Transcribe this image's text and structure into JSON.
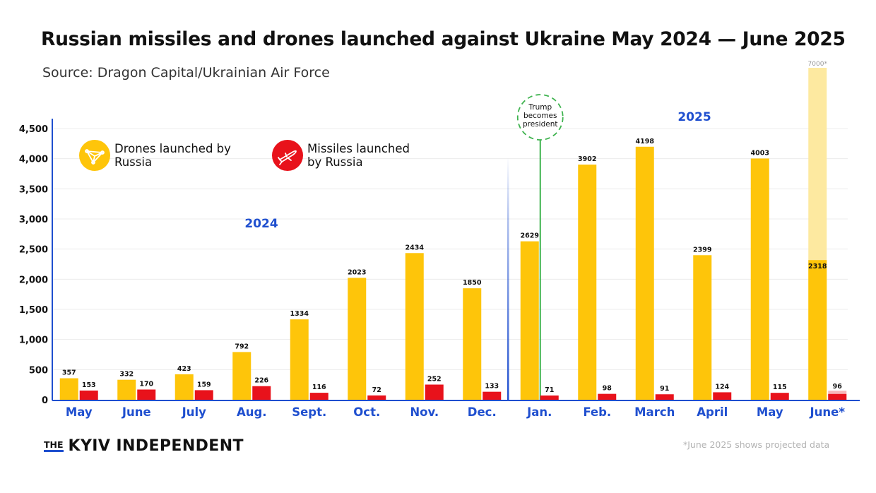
{
  "colors": {
    "drones": "#fec50a",
    "drones_projected": "#fde9a0",
    "missiles": "#e8121b",
    "missiles_projected": "#f7b7b9",
    "accent_blue": "#1f4fcf",
    "event_green": "#3fb34f",
    "grid": "#ececec",
    "axis": "#1f4fcf"
  },
  "legend": {
    "drones": {
      "label": "Drones launched by Russia",
      "icon": "drone-icon"
    },
    "missiles": {
      "label": "Missiles launched by Russia",
      "icon": "missile-icon"
    }
  },
  "annotations": {
    "year_2024": "2024",
    "year_2025": "2025",
    "event_label_lines": [
      "Trump",
      "becomes",
      "president"
    ]
  },
  "brand": {
    "prefix": "THE",
    "name": "KYIV INDEPENDENT"
  },
  "footnote": "*June 2025 shows projected data",
  "chart_data": {
    "type": "bar",
    "title": "Russian missiles and drones launched against Ukraine May 2024 — June 2025",
    "subtitle": "Source: Dragon Capital/Ukrainian Air Force",
    "xlabel": "",
    "ylabel": "",
    "ylim": [
      0,
      4500
    ],
    "yticks": [
      0,
      500,
      1000,
      1500,
      2000,
      2500,
      3000,
      3500,
      4000,
      4500
    ],
    "ytick_labels": [
      "0",
      "500",
      "1,000",
      "1,500",
      "2,000",
      "2,500",
      "3,000",
      "3,500",
      "4,000",
      "4,500"
    ],
    "grid": true,
    "categories": [
      "May",
      "June",
      "July",
      "Aug.",
      "Sept.",
      "Oct.",
      "Nov.",
      "Dec.",
      "Jan.",
      "Feb.",
      "March",
      "April",
      "May",
      "June*"
    ],
    "series": [
      {
        "name": "Drones launched by Russia",
        "values": [
          357,
          332,
          423,
          792,
          1334,
          2023,
          2434,
          1850,
          2629,
          3902,
          4198,
          2399,
          4003,
          2318
        ]
      },
      {
        "name": "Missiles launched by Russia",
        "values": [
          153,
          170,
          159,
          226,
          116,
          72,
          252,
          133,
          71,
          98,
          91,
          124,
          115,
          96
        ]
      }
    ],
    "drone_labels": [
      "357",
      "332",
      "423",
      "792",
      "1334",
      "2023",
      "2434",
      "1850",
      "2629",
      "3902",
      "4198",
      "2399",
      "4003",
      "2318"
    ],
    "missile_labels": [
      "153",
      "170",
      "159",
      "226",
      "116",
      "72",
      "252",
      "133",
      "71",
      "98",
      "91",
      "124",
      "115",
      "96"
    ],
    "projected": {
      "category": "June*",
      "drones_value": 7000,
      "drones_label": "7000*",
      "missiles_value": 150
    },
    "year_split_after_category": "Dec.",
    "event_category": "Jan."
  }
}
